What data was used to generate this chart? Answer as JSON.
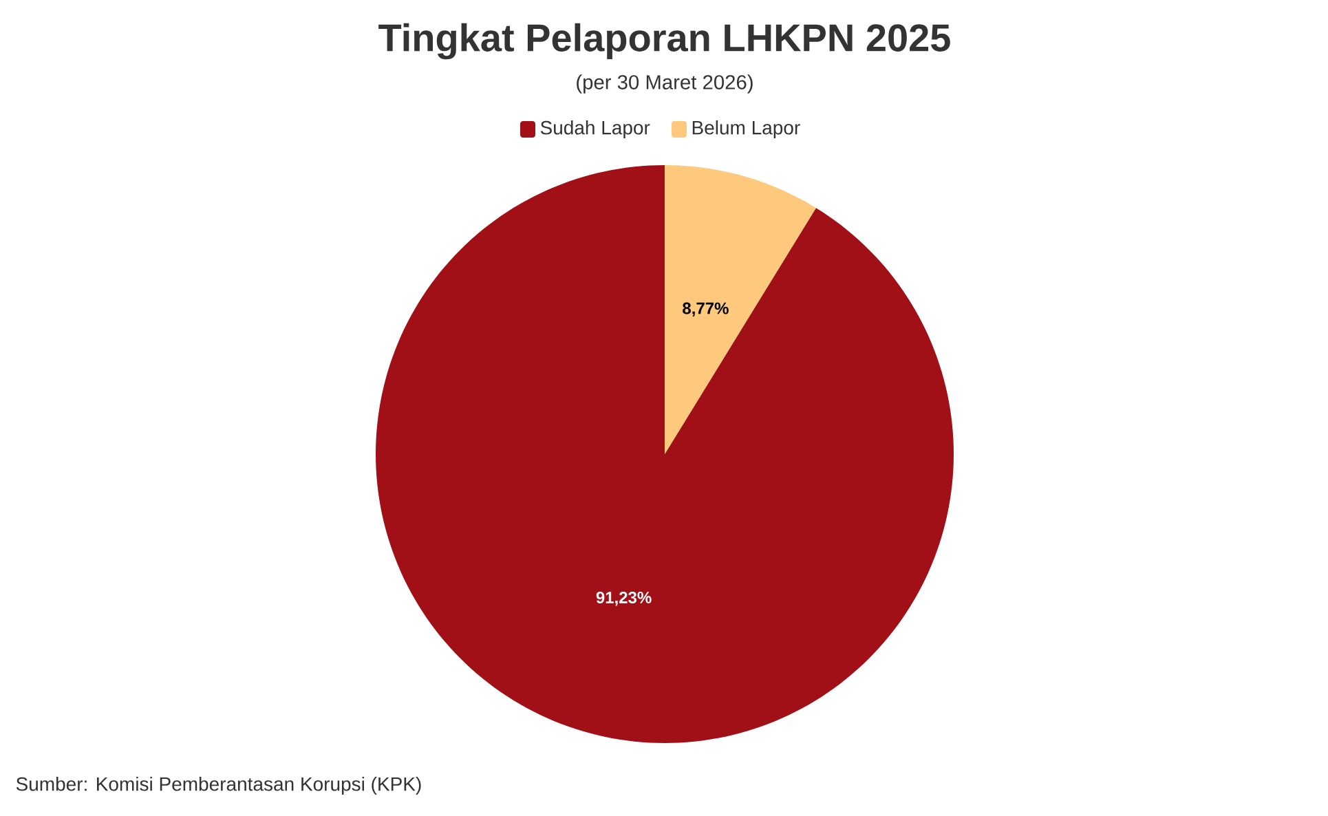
{
  "chart_data": {
    "type": "pie",
    "title": "Tingkat Pelaporan LHKPN 2025",
    "subtitle": "(per 30 Maret 2026)",
    "categories": [
      "Sudah Lapor",
      "Belum Lapor"
    ],
    "values": [
      91.23,
      8.77
    ],
    "colors": [
      "#a01016",
      "#fec97c"
    ],
    "value_labels": [
      "91,23%",
      "8,77%"
    ],
    "legend": "top",
    "annotations": [
      "Sumber: Komisi Pemberantasan Korupsi (KPK)"
    ]
  }
}
